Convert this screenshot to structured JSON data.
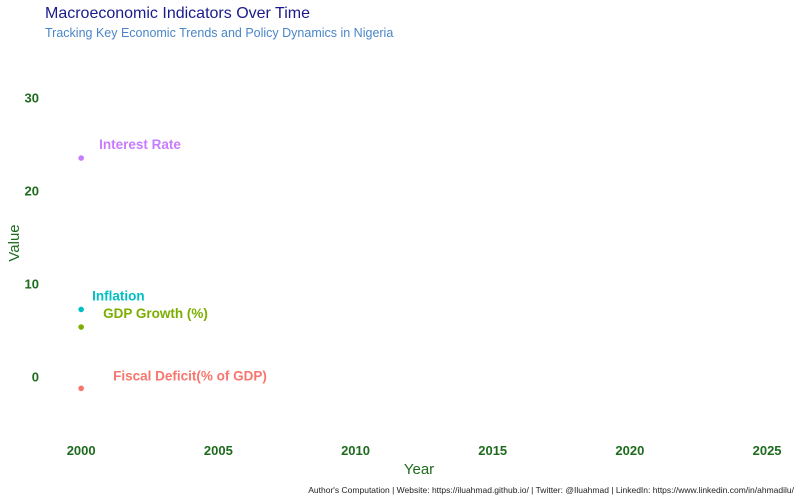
{
  "chart_data": {
    "type": "scatter",
    "title": "Macroeconomic Indicators Over Time",
    "subtitle": "Tracking Key Economic Trends and Policy Dynamics in Nigeria",
    "caption": "Author's Computation | Website: https://iluahmad.github.io/ | Twitter: @Iluahmad | LinkedIn: https://www.linkedin.com/in/ahmadilu/",
    "xlabel": "Year",
    "ylabel": "Value",
    "xlim": [
      1998.5,
      2026.2
    ],
    "ylim": [
      -7.4,
      34.6
    ],
    "x_ticks": [
      2000,
      2005,
      2010,
      2015,
      2020,
      2025
    ],
    "y_ticks": [
      0,
      10,
      20,
      30
    ],
    "grid": false,
    "legend": "none",
    "series": [
      {
        "name": "Interest Rate",
        "color": "#c77cff",
        "points": [
          {
            "x": 2000,
            "y": 23.5
          }
        ]
      },
      {
        "name": "Inflation",
        "color": "#00bfc4",
        "points": [
          {
            "x": 2000,
            "y": 7.2
          }
        ]
      },
      {
        "name": "GDP Growth (%)",
        "color": "#7cae00",
        "points": [
          {
            "x": 2000,
            "y": 5.3
          }
        ]
      },
      {
        "name": "Fiscal Deficit(% of GDP)",
        "color": "#f8766d",
        "points": [
          {
            "x": 2000,
            "y": -1.3
          }
        ]
      }
    ]
  }
}
